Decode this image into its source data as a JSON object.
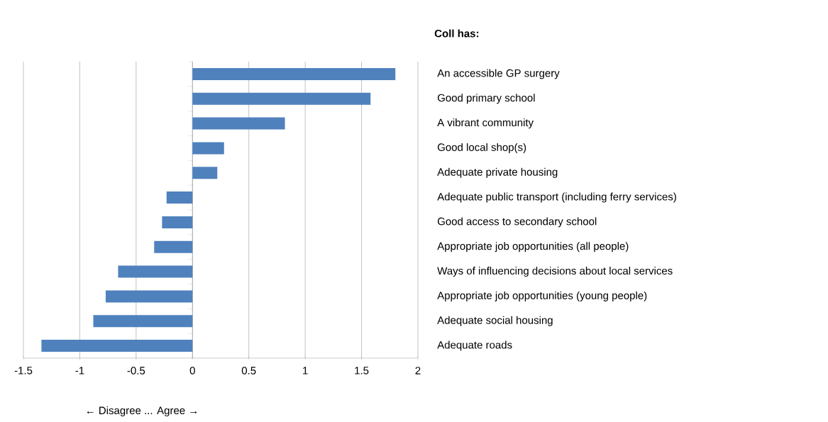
{
  "chart_data": {
    "type": "bar",
    "orientation": "horizontal",
    "title": "Coll has:",
    "xlabel": "← Disagree ... Agree →",
    "categories": [
      "An accessible GP surgery",
      "Good primary school",
      "A vibrant community",
      "Good local shop(s)",
      "Adequate private housing",
      "Adequate public transport (including ferry services)",
      "Good access to secondary school",
      "Appropriate job opportunities (all people)",
      "Ways of influencing decisions about local services",
      "Appropriate job opportunities (young people)",
      "Adequate social housing",
      "Adequate roads"
    ],
    "values": [
      1.8,
      1.58,
      0.82,
      0.28,
      0.22,
      -0.23,
      -0.27,
      -0.34,
      -0.66,
      -0.77,
      -0.88,
      -1.34
    ],
    "color": "#4f81bd",
    "xlim": [
      -1.5,
      2
    ],
    "xticks": [
      -1.5,
      -1,
      -0.5,
      0,
      0.5,
      1,
      1.5,
      2
    ],
    "grid": "x"
  }
}
